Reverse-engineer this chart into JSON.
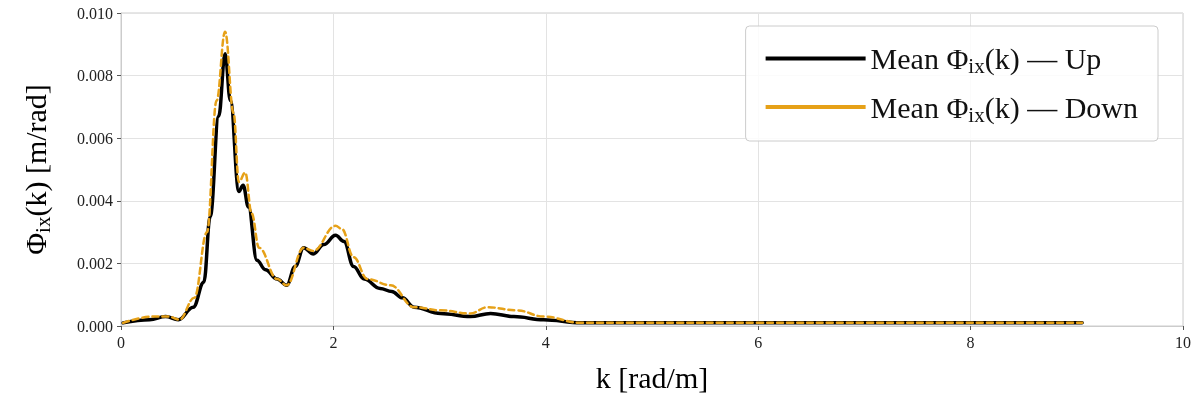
{
  "chart_data": {
    "type": "line",
    "xlabel": "k [rad/m]",
    "ylabel": "Φ$_{ix}$(k) [m/rad]",
    "xlim": [
      0,
      10
    ],
    "xticks": [
      0,
      2,
      4,
      6,
      8,
      10
    ],
    "ylim": [
      0,
      0.01
    ],
    "yticks": [
      {
        "value": 0,
        "label": "0.000"
      },
      {
        "value": 0.002,
        "label": "0.002"
      },
      {
        "value": 0.004,
        "label": "0.004"
      },
      {
        "value": 0.006,
        "label": "0.006"
      },
      {
        "value": 0.008,
        "label": "0.008"
      },
      {
        "value": 0.01,
        "label": "0.010"
      }
    ],
    "grid": true,
    "legend": "top right",
    "marker": "none",
    "series": [
      {
        "name": "Mean Φ$_{ix}$(k) — Up",
        "color": "#000000",
        "line_style": "solid",
        "x": [
          0.02,
          0.27,
          0.42,
          0.54,
          0.68,
          0.78,
          0.84,
          0.92,
          0.98,
          1.03,
          1.11,
          1.15,
          1.2,
          1.28,
          1.36,
          1.47,
          1.56,
          1.64,
          1.72,
          1.81,
          1.91,
          2.02,
          2.1,
          2.19,
          2.29,
          2.44,
          2.55,
          2.65,
          2.76,
          3.01,
          3.29,
          3.48,
          3.7,
          3.98,
          4.33,
          4.9,
          6,
          7,
          8,
          9.05
        ],
        "values": [
          0.0001,
          0.0002,
          0.0003,
          0.0002,
          0.0006,
          0.0014,
          0.0035,
          0.0067,
          0.0087,
          0.0072,
          0.0043,
          0.0045,
          0.0038,
          0.0021,
          0.0018,
          0.0015,
          0.0013,
          0.0019,
          0.0025,
          0.0023,
          0.0026,
          0.0029,
          0.0027,
          0.0019,
          0.0015,
          0.0012,
          0.0011,
          0.0009,
          0.0006,
          0.0004,
          0.0003,
          0.0004,
          0.0003,
          0.0002,
          0.0001,
          0.0001,
          0.0001,
          0.0001,
          0.0001,
          0.0001
        ]
      },
      {
        "name": "Mean Φ$_{ix}$(k) — Down",
        "color": "#e6a118",
        "line_style": "dashed",
        "x": [
          0.02,
          0.3,
          0.45,
          0.55,
          0.69,
          0.81,
          0.9,
          0.98,
          1.06,
          1.11,
          1.17,
          1.23,
          1.3,
          1.47,
          1.56,
          1.72,
          1.81,
          2.02,
          2.08,
          2.19,
          2.32,
          2.54,
          2.76,
          3.01,
          3.29,
          3.45,
          3.73,
          3.98,
          4.33,
          4.9,
          6,
          7,
          8,
          9.05
        ],
        "values": [
          0.0001,
          0.0003,
          0.0003,
          0.0002,
          0.0009,
          0.003,
          0.0072,
          0.0094,
          0.0068,
          0.0046,
          0.0049,
          0.0036,
          0.0025,
          0.0015,
          0.0013,
          0.0025,
          0.0024,
          0.0032,
          0.0031,
          0.0022,
          0.0015,
          0.0013,
          0.0006,
          0.0005,
          0.0004,
          0.0006,
          0.0005,
          0.0003,
          0.0001,
          0.0001,
          0.0001,
          0.0001,
          0.0001,
          0.0001
        ]
      }
    ]
  }
}
